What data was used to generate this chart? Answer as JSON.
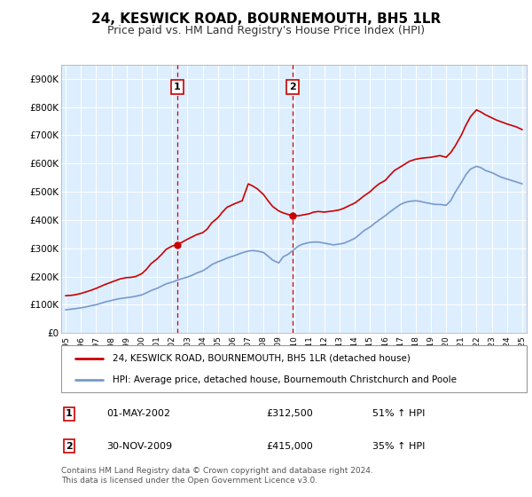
{
  "title": "24, KESWICK ROAD, BOURNEMOUTH, BH5 1LR",
  "subtitle": "Price paid vs. HM Land Registry's House Price Index (HPI)",
  "title_fontsize": 11,
  "subtitle_fontsize": 9,
  "background_color": "#ffffff",
  "plot_bg_color": "#ddeeff",
  "grid_color": "#ffffff",
  "red_line_color": "#cc0000",
  "blue_line_color": "#7799cc",
  "vline_color": "#cc0000",
  "ylim": [
    0,
    950000
  ],
  "yticks": [
    0,
    100000,
    200000,
    300000,
    400000,
    500000,
    600000,
    700000,
    800000,
    900000
  ],
  "ytick_labels": [
    "£0",
    "£100K",
    "£200K",
    "£300K",
    "£400K",
    "£500K",
    "£600K",
    "£700K",
    "£800K",
    "£900K"
  ],
  "xmin": 1994.7,
  "xmax": 2025.3,
  "xticks": [
    1995,
    1996,
    1997,
    1998,
    1999,
    2000,
    2001,
    2002,
    2003,
    2004,
    2005,
    2006,
    2007,
    2008,
    2009,
    2010,
    2011,
    2012,
    2013,
    2014,
    2015,
    2016,
    2017,
    2018,
    2019,
    2020,
    2021,
    2022,
    2023,
    2024,
    2025
  ],
  "vline1_x": 2002.33,
  "vline2_x": 2009.92,
  "marker1_y": 312500,
  "marker2_y": 415000,
  "legend_items": [
    {
      "label": "24, KESWICK ROAD, BOURNEMOUTH, BH5 1LR (detached house)",
      "color": "#cc0000"
    },
    {
      "label": "HPI: Average price, detached house, Bournemouth Christchurch and Poole",
      "color": "#7799cc"
    }
  ],
  "table_rows": [
    {
      "num": "1",
      "date": "01-MAY-2002",
      "price": "£312,500",
      "hpi": "51% ↑ HPI"
    },
    {
      "num": "2",
      "date": "30-NOV-2009",
      "price": "£415,000",
      "hpi": "35% ↑ HPI"
    }
  ],
  "footer": "Contains HM Land Registry data © Crown copyright and database right 2024.\nThis data is licensed under the Open Government Licence v3.0.",
  "red_x": [
    1995.0,
    1995.3,
    1995.6,
    1996.0,
    1996.3,
    1996.6,
    1997.0,
    1997.3,
    1997.6,
    1998.0,
    1998.3,
    1998.6,
    1999.0,
    1999.3,
    1999.6,
    2000.0,
    2000.3,
    2000.6,
    2001.0,
    2001.3,
    2001.6,
    2002.0,
    2002.33,
    2002.6,
    2003.0,
    2003.3,
    2003.6,
    2004.0,
    2004.3,
    2004.6,
    2005.0,
    2005.3,
    2005.6,
    2006.0,
    2006.3,
    2006.6,
    2007.0,
    2007.3,
    2007.6,
    2008.0,
    2008.3,
    2008.6,
    2009.0,
    2009.3,
    2009.6,
    2009.92,
    2010.3,
    2010.6,
    2011.0,
    2011.3,
    2011.6,
    2012.0,
    2012.3,
    2012.6,
    2013.0,
    2013.3,
    2013.6,
    2014.0,
    2014.3,
    2014.6,
    2015.0,
    2015.3,
    2015.6,
    2016.0,
    2016.3,
    2016.6,
    2017.0,
    2017.3,
    2017.6,
    2018.0,
    2018.3,
    2018.6,
    2019.0,
    2019.3,
    2019.6,
    2020.0,
    2020.3,
    2020.6,
    2021.0,
    2021.3,
    2021.6,
    2022.0,
    2022.3,
    2022.6,
    2023.0,
    2023.3,
    2023.6,
    2024.0,
    2024.3,
    2024.6,
    2025.0
  ],
  "red_y": [
    132000,
    133000,
    135000,
    140000,
    145000,
    150000,
    158000,
    165000,
    172000,
    180000,
    186000,
    192000,
    196000,
    197000,
    200000,
    210000,
    225000,
    245000,
    262000,
    278000,
    296000,
    308000,
    312500,
    320000,
    332000,
    340000,
    348000,
    355000,
    368000,
    390000,
    408000,
    428000,
    445000,
    455000,
    462000,
    468000,
    528000,
    520000,
    510000,
    490000,
    468000,
    448000,
    432000,
    425000,
    420000,
    415000,
    415000,
    418000,
    422000,
    428000,
    430000,
    428000,
    430000,
    432000,
    436000,
    442000,
    450000,
    460000,
    472000,
    485000,
    500000,
    515000,
    528000,
    540000,
    558000,
    575000,
    588000,
    598000,
    608000,
    615000,
    618000,
    620000,
    622000,
    625000,
    628000,
    622000,
    638000,
    662000,
    700000,
    735000,
    765000,
    790000,
    782000,
    772000,
    762000,
    754000,
    748000,
    740000,
    735000,
    730000,
    720000
  ],
  "blue_x": [
    1995.0,
    1995.3,
    1995.6,
    1996.0,
    1996.3,
    1996.6,
    1997.0,
    1997.3,
    1997.6,
    1998.0,
    1998.3,
    1998.6,
    1999.0,
    1999.3,
    1999.6,
    2000.0,
    2000.3,
    2000.6,
    2001.0,
    2001.3,
    2001.6,
    2002.0,
    2002.3,
    2002.6,
    2003.0,
    2003.3,
    2003.6,
    2004.0,
    2004.3,
    2004.6,
    2005.0,
    2005.3,
    2005.6,
    2006.0,
    2006.3,
    2006.6,
    2007.0,
    2007.3,
    2007.6,
    2008.0,
    2008.3,
    2008.6,
    2009.0,
    2009.3,
    2009.6,
    2010.0,
    2010.3,
    2010.6,
    2011.0,
    2011.3,
    2011.6,
    2012.0,
    2012.3,
    2012.6,
    2013.0,
    2013.3,
    2013.6,
    2014.0,
    2014.3,
    2014.6,
    2015.0,
    2015.3,
    2015.6,
    2016.0,
    2016.3,
    2016.6,
    2017.0,
    2017.3,
    2017.6,
    2018.0,
    2018.3,
    2018.6,
    2019.0,
    2019.3,
    2019.6,
    2020.0,
    2020.3,
    2020.6,
    2021.0,
    2021.3,
    2021.6,
    2022.0,
    2022.3,
    2022.6,
    2023.0,
    2023.3,
    2023.6,
    2024.0,
    2024.3,
    2024.6,
    2025.0
  ],
  "blue_y": [
    82000,
    84000,
    86000,
    89000,
    92000,
    96000,
    100000,
    105000,
    110000,
    115000,
    119000,
    122000,
    125000,
    127000,
    130000,
    135000,
    142000,
    150000,
    158000,
    166000,
    174000,
    180000,
    186000,
    192000,
    198000,
    204000,
    212000,
    220000,
    230000,
    242000,
    252000,
    258000,
    265000,
    272000,
    278000,
    284000,
    290000,
    292000,
    290000,
    285000,
    272000,
    258000,
    248000,
    270000,
    278000,
    295000,
    308000,
    315000,
    320000,
    322000,
    322000,
    318000,
    315000,
    312000,
    315000,
    318000,
    325000,
    335000,
    348000,
    362000,
    375000,
    388000,
    400000,
    415000,
    428000,
    440000,
    455000,
    462000,
    466000,
    468000,
    466000,
    462000,
    458000,
    455000,
    455000,
    452000,
    468000,
    498000,
    532000,
    560000,
    580000,
    590000,
    585000,
    575000,
    568000,
    560000,
    552000,
    545000,
    540000,
    535000,
    528000
  ]
}
